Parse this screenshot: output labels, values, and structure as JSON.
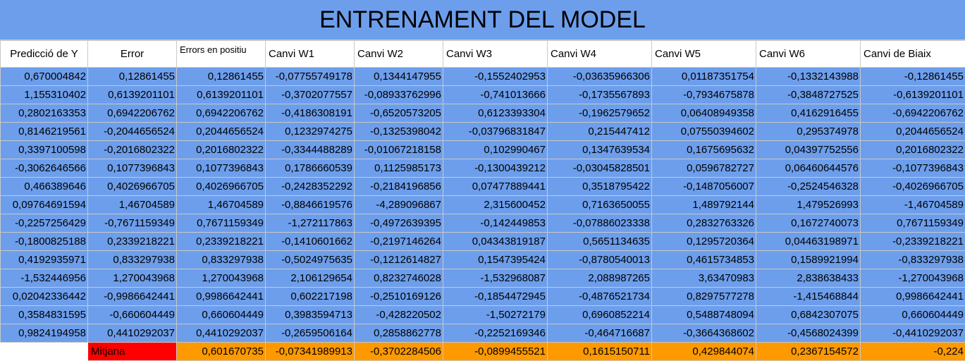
{
  "title": "ENTRENAMENT DEL MODEL",
  "headers": [
    "Predicció de Y",
    "Error",
    "Errors en positiu",
    "Canvi W1",
    "Canvi W2",
    "Canvi W3",
    "Canvi W4",
    "Canvi W5",
    "Canvi W6",
    "Canvi de Biaix"
  ],
  "rows": [
    [
      "0,670004842",
      "0,12861455",
      "0,12861455",
      "-0,07755749178",
      "0,1344147955",
      "-0,1552402953",
      "-0,03635966306",
      "0,01187351754",
      "-0,1332143988",
      "-0,12861455"
    ],
    [
      "1,155310402",
      "0,6139201101",
      "0,6139201101",
      "-0,3702077557",
      "-0,08933762996",
      "-0,741013666",
      "-0,1735567893",
      "-0,7934675878",
      "-0,3848727525",
      "-0,6139201101"
    ],
    [
      "0,2802163353",
      "0,6942206762",
      "0,6942206762",
      "-0,4186308191",
      "-0,6520573205",
      "0,6123393304",
      "-0,1962579652",
      "0,06408949358",
      "0,4162916455",
      "-0,6942206762"
    ],
    [
      "0,8146219561",
      "-0,2044656524",
      "0,2044656524",
      "0,1232974275",
      "-0,1325398042",
      "-0,03796831847",
      "0,215447412",
      "0,07550394602",
      "0,295374978",
      "0,2044656524"
    ],
    [
      "0,3397100598",
      "-0,2016802322",
      "0,2016802322",
      "-0,3344488289",
      "-0,01067218158",
      "0,102990467",
      "0,1347639534",
      "0,1675695632",
      "0,04397752556",
      "0,2016802322"
    ],
    [
      "-0,3062646566",
      "0,1077396843",
      "0,1077396843",
      "0,1786660539",
      "0,1125985173",
      "-0,1300439212",
      "-0,03045828501",
      "0,0596782727",
      "0,06460644576",
      "-0,1077396843"
    ],
    [
      "0,466389646",
      "0,4026966705",
      "0,4026966705",
      "-0,2428352292",
      "-0,2184196856",
      "0,07477889441",
      "0,3518795422",
      "-0,1487056007",
      "-0,2524546328",
      "-0,4026966705"
    ],
    [
      "0,09764691594",
      "1,46704589",
      "1,46704589",
      "-0,8846619576",
      "-4,289096867",
      "2,315600452",
      "0,7163650055",
      "1,489792144",
      "1,479526993",
      "-1,46704589"
    ],
    [
      "-0,2257256429",
      "-0,7671159349",
      "0,7671159349",
      "-1,272117863",
      "-0,4972639395",
      "-0,142449853",
      "-0,07886023338",
      "0,2832763326",
      "0,1672740073",
      "0,7671159349"
    ],
    [
      "-0,1800825188",
      "0,2339218221",
      "0,2339218221",
      "-0,1410601662",
      "-0,2197146264",
      "0,04343819187",
      "0,5651134635",
      "0,1295720364",
      "0,04463198971",
      "-0,2339218221"
    ],
    [
      "0,4192935971",
      "0,833297938",
      "0,833297938",
      "-0,5024975635",
      "-0,1212614827",
      "0,1547395424",
      "-0,8780540013",
      "0,4615734853",
      "0,1589921994",
      "-0,833297938"
    ],
    [
      "-1,532446956",
      "1,270043968",
      "1,270043968",
      "2,106129654",
      "0,8232746028",
      "-1,532968087",
      "2,088987265",
      "3,63470983",
      "2,838638433",
      "-1,270043968"
    ],
    [
      "0,02042336442",
      "-0,9986642441",
      "0,9986642441",
      "0,602217198",
      "-0,2510169126",
      "-0,1854472945",
      "-0,4876521734",
      "0,8297577278",
      "-1,415468844",
      "0,9986642441"
    ],
    [
      "0,3584831595",
      "-0,660604449",
      "0,660604449",
      "0,3983594713",
      "-0,428220502",
      "-1,50272179",
      "0,6960852214",
      "0,5488748094",
      "0,6842307075",
      "0,660604449"
    ],
    [
      "0,9824194958",
      "0,4410292037",
      "0,4410292037",
      "-0,2659506164",
      "0,2858862778",
      "-0,2252169346",
      "-0,464716687",
      "-0,3664368602",
      "-0,4568024399",
      "-0,4410292037"
    ]
  ],
  "footer": {
    "label": "Mitjana",
    "values": [
      "0,601670735",
      "-0,07341989913",
      "-0,3702284506",
      "-0,0899455521",
      "0,1615150711",
      "0,429844074",
      "0,2367154572",
      "-0,224"
    ]
  },
  "colors": {
    "data_fill": "#6d9eeb",
    "mitjana_fill": "#ff0000",
    "average_fill": "#ff9900"
  }
}
